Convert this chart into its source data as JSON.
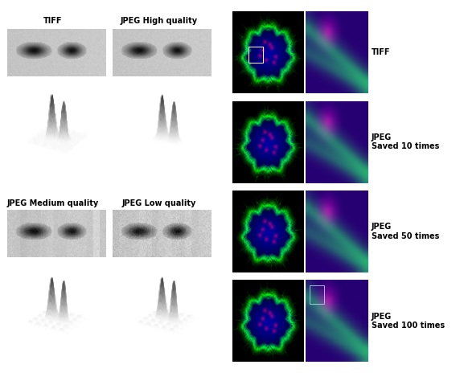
{
  "fig_width": 5.72,
  "fig_height": 4.74,
  "dpi": 100,
  "bg_color": "#ffffff",
  "labels_left_top": [
    "TIFF",
    "JPEG High quality"
  ],
  "labels_left_bottom": [
    "JPEG Medium quality",
    "JPEG Low quality"
  ],
  "labels_right": [
    "TIFF",
    "JPEG\nSaved 10 times",
    "JPEG\nSaved 50 times",
    "JPEG\nSaved 100 times"
  ],
  "label_fontsize": 7,
  "label_fontweight": "bold"
}
